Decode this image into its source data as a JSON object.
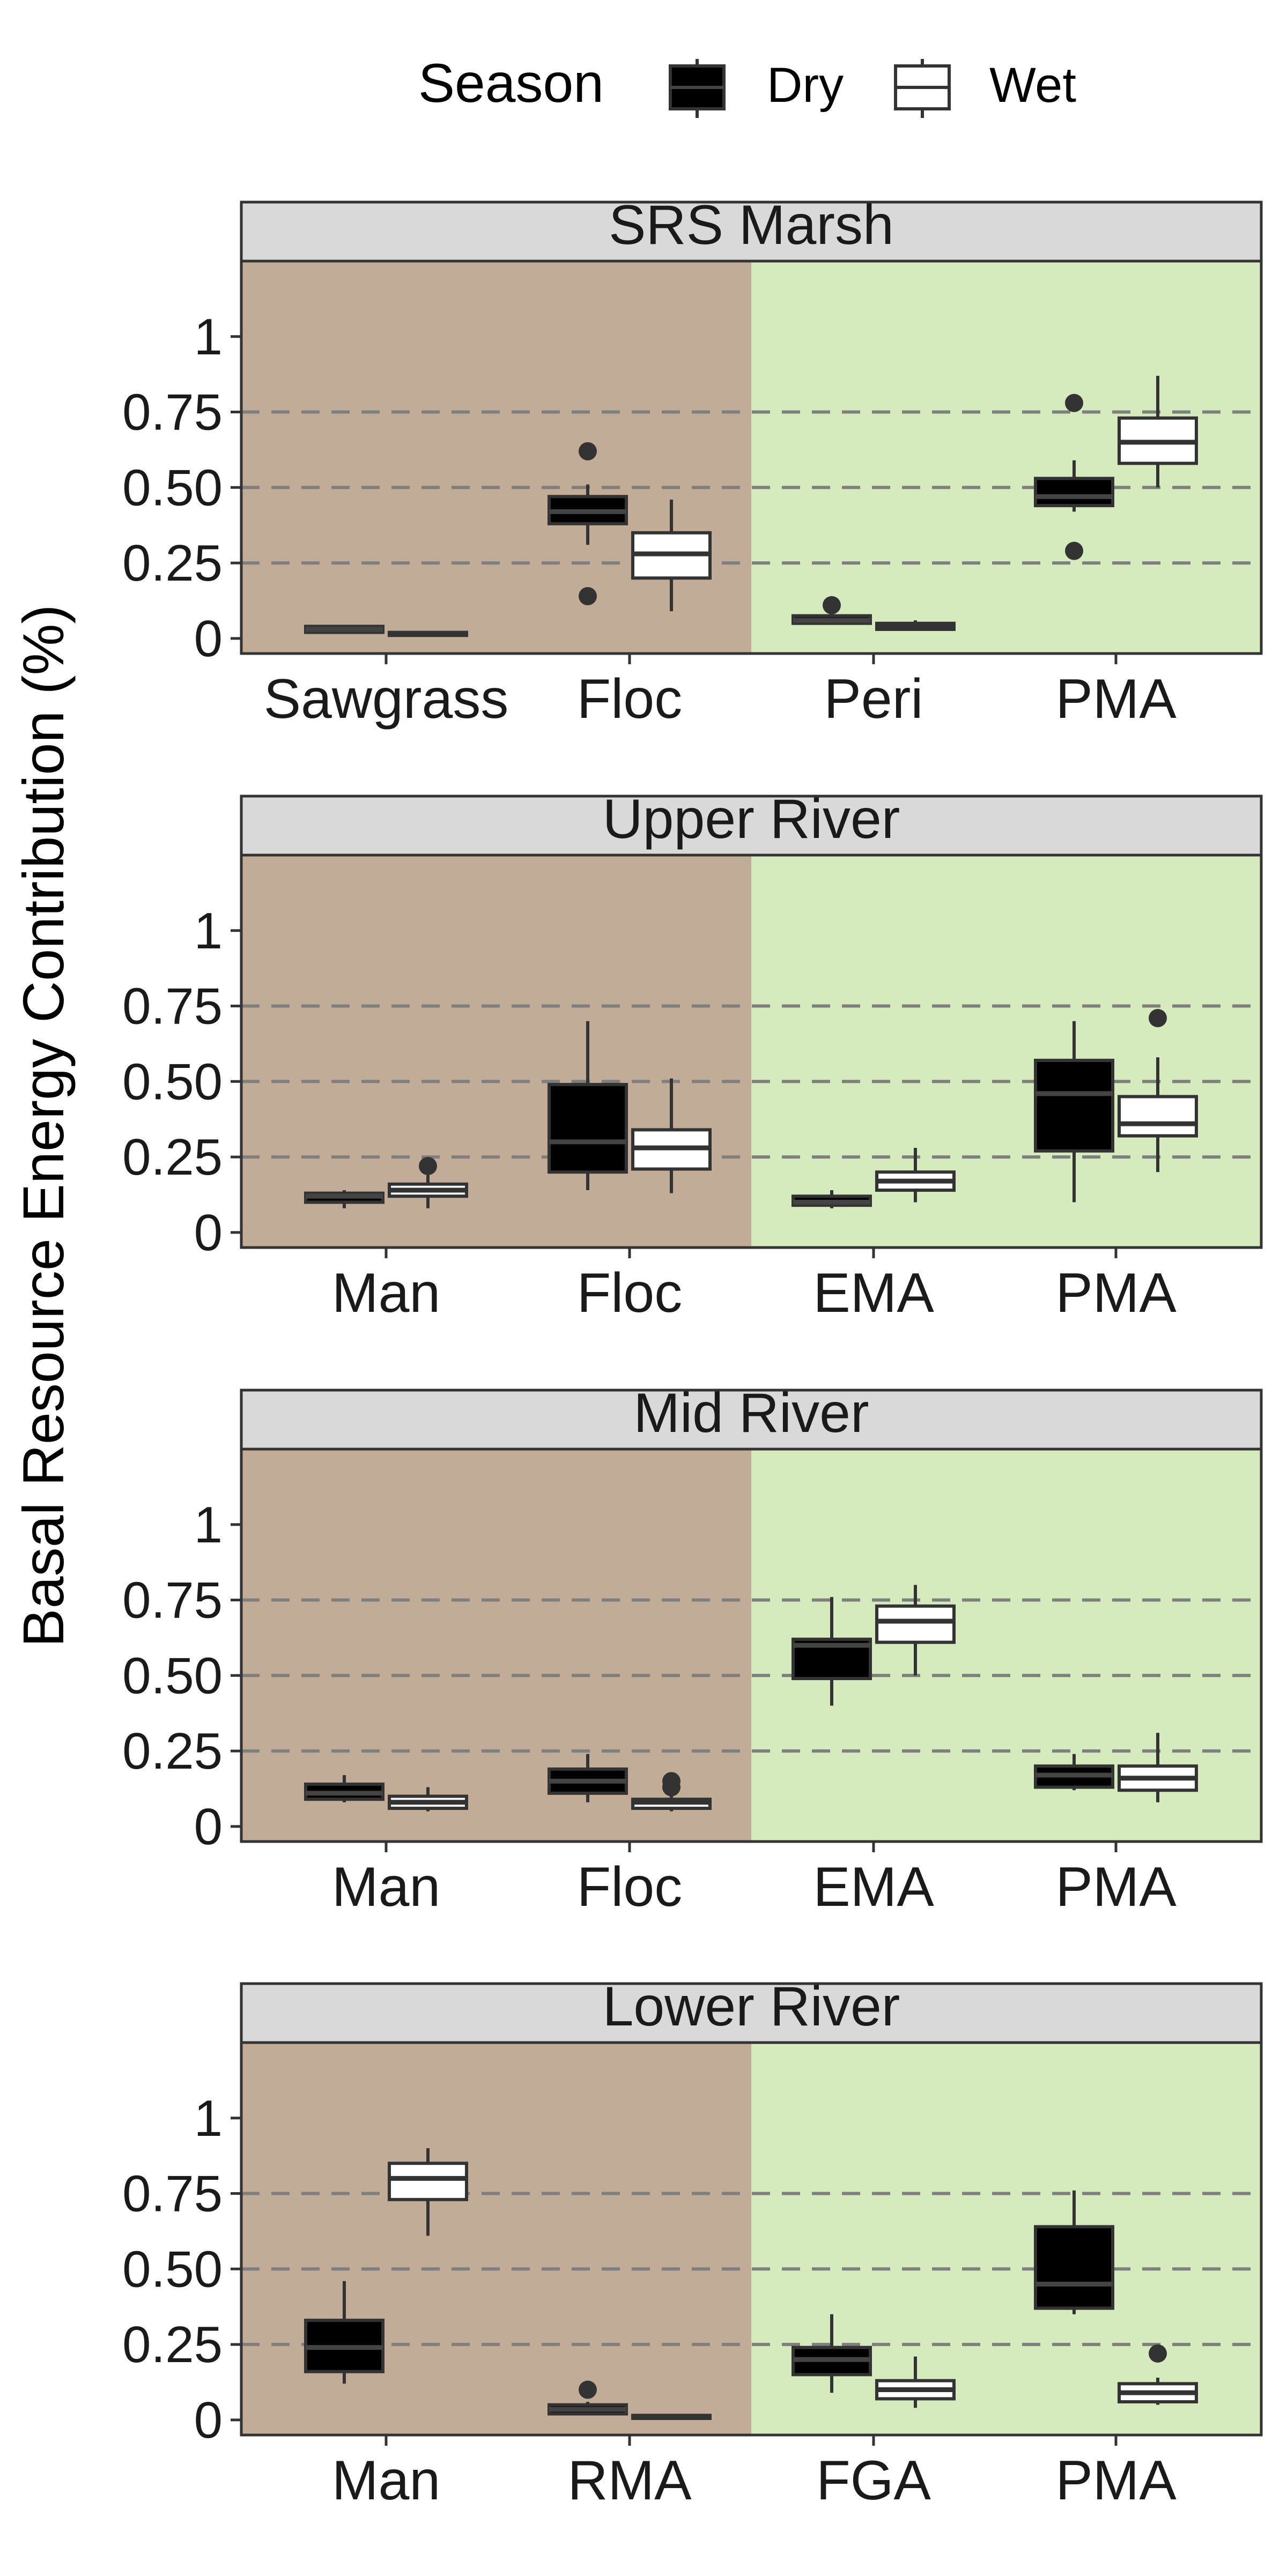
{
  "legend": {
    "title": "Season",
    "entries": [
      {
        "label": "Dry",
        "fill": "#000000"
      },
      {
        "label": "Wet",
        "fill": "#ffffff"
      }
    ]
  },
  "ylabel": "Basal Resource Energy Contribution (%)",
  "colors": {
    "left_background": "#c2ac98",
    "right_background": "#d5ebbd",
    "strip_background": "#d9d9d9",
    "dry_fill": "#000000",
    "wet_fill": "#ffffff",
    "box_line": "#333333",
    "median_dry": "#444444",
    "median_wet": "#333333",
    "gridline": "#7f7f7f"
  },
  "chart_data": {
    "type": "boxplot",
    "ylim": [
      -0.05,
      1.25
    ],
    "yticks": [
      0,
      0.25,
      0.5,
      0.75,
      1
    ],
    "ytick_labels": [
      "0",
      "0.25",
      "0.50",
      "0.75",
      "1"
    ],
    "gridlines": [
      0.25,
      0.5,
      0.75
    ],
    "grid": "dashed horizontal at 0.25, 0.50, 0.75",
    "legend_position": "top",
    "panels": [
      {
        "title": "SRS Marsh",
        "categories": [
          "Sawgrass",
          "Floc",
          "Peri",
          "PMA"
        ],
        "groups": [
          {
            "category": "Sawgrass",
            "season": "Dry",
            "min": 0.02,
            "q1": 0.02,
            "median": 0.03,
            "q3": 0.04,
            "max": 0.04,
            "outliers": []
          },
          {
            "category": "Sawgrass",
            "season": "Wet",
            "min": 0.01,
            "q1": 0.01,
            "median": 0.015,
            "q3": 0.02,
            "max": 0.02,
            "outliers": []
          },
          {
            "category": "Floc",
            "season": "Dry",
            "min": 0.31,
            "q1": 0.38,
            "median": 0.42,
            "q3": 0.47,
            "max": 0.51,
            "outliers": [
              0.62,
              0.14
            ]
          },
          {
            "category": "Floc",
            "season": "Wet",
            "min": 0.09,
            "q1": 0.2,
            "median": 0.28,
            "q3": 0.35,
            "max": 0.46,
            "outliers": []
          },
          {
            "category": "Peri",
            "season": "Dry",
            "min": 0.05,
            "q1": 0.05,
            "median": 0.06,
            "q3": 0.075,
            "max": 0.08,
            "outliers": [
              0.11
            ]
          },
          {
            "category": "Peri",
            "season": "Wet",
            "min": 0.03,
            "q1": 0.03,
            "median": 0.04,
            "q3": 0.05,
            "max": 0.06,
            "outliers": []
          },
          {
            "category": "PMA",
            "season": "Dry",
            "min": 0.42,
            "q1": 0.44,
            "median": 0.47,
            "q3": 0.53,
            "max": 0.59,
            "outliers": [
              0.78,
              0.29
            ]
          },
          {
            "category": "PMA",
            "season": "Wet",
            "min": 0.5,
            "q1": 0.58,
            "median": 0.65,
            "q3": 0.73,
            "max": 0.87,
            "outliers": []
          }
        ]
      },
      {
        "title": "Upper River",
        "categories": [
          "Man",
          "Floc",
          "EMA",
          "PMA"
        ],
        "groups": [
          {
            "category": "Man",
            "season": "Dry",
            "min": 0.08,
            "q1": 0.1,
            "median": 0.12,
            "q3": 0.13,
            "max": 0.14,
            "outliers": []
          },
          {
            "category": "Man",
            "season": "Wet",
            "min": 0.08,
            "q1": 0.12,
            "median": 0.14,
            "q3": 0.16,
            "max": 0.19,
            "outliers": [
              0.22
            ]
          },
          {
            "category": "Floc",
            "season": "Dry",
            "min": 0.14,
            "q1": 0.2,
            "median": 0.3,
            "q3": 0.49,
            "max": 0.7,
            "outliers": []
          },
          {
            "category": "Floc",
            "season": "Wet",
            "min": 0.13,
            "q1": 0.21,
            "median": 0.28,
            "q3": 0.34,
            "max": 0.51,
            "outliers": []
          },
          {
            "category": "EMA",
            "season": "Dry",
            "min": 0.08,
            "q1": 0.09,
            "median": 0.1,
            "q3": 0.12,
            "max": 0.14,
            "outliers": []
          },
          {
            "category": "EMA",
            "season": "Wet",
            "min": 0.1,
            "q1": 0.14,
            "median": 0.17,
            "q3": 0.2,
            "max": 0.28,
            "outliers": []
          },
          {
            "category": "PMA",
            "season": "Dry",
            "min": 0.1,
            "q1": 0.27,
            "median": 0.46,
            "q3": 0.57,
            "max": 0.7,
            "outliers": []
          },
          {
            "category": "PMA",
            "season": "Wet",
            "min": 0.2,
            "q1": 0.32,
            "median": 0.36,
            "q3": 0.45,
            "max": 0.58,
            "outliers": [
              0.71
            ]
          }
        ]
      },
      {
        "title": "Mid River",
        "categories": [
          "Man",
          "Floc",
          "EMA",
          "PMA"
        ],
        "groups": [
          {
            "category": "Man",
            "season": "Dry",
            "min": 0.08,
            "q1": 0.09,
            "median": 0.11,
            "q3": 0.14,
            "max": 0.17,
            "outliers": []
          },
          {
            "category": "Man",
            "season": "Wet",
            "min": 0.05,
            "q1": 0.06,
            "median": 0.08,
            "q3": 0.1,
            "max": 0.13,
            "outliers": []
          },
          {
            "category": "Floc",
            "season": "Dry",
            "min": 0.08,
            "q1": 0.11,
            "median": 0.15,
            "q3": 0.19,
            "max": 0.24,
            "outliers": []
          },
          {
            "category": "Floc",
            "season": "Wet",
            "min": 0.05,
            "q1": 0.06,
            "median": 0.08,
            "q3": 0.09,
            "max": 0.1,
            "outliers": [
              0.15,
              0.13
            ]
          },
          {
            "category": "EMA",
            "season": "Dry",
            "min": 0.4,
            "q1": 0.49,
            "median": 0.6,
            "q3": 0.62,
            "max": 0.76,
            "outliers": []
          },
          {
            "category": "EMA",
            "season": "Wet",
            "min": 0.5,
            "q1": 0.61,
            "median": 0.68,
            "q3": 0.73,
            "max": 0.8,
            "outliers": []
          },
          {
            "category": "PMA",
            "season": "Dry",
            "min": 0.12,
            "q1": 0.13,
            "median": 0.17,
            "q3": 0.2,
            "max": 0.24,
            "outliers": []
          },
          {
            "category": "PMA",
            "season": "Wet",
            "min": 0.08,
            "q1": 0.12,
            "median": 0.16,
            "q3": 0.2,
            "max": 0.31,
            "outliers": []
          }
        ]
      },
      {
        "title": "Lower River",
        "categories": [
          "Man",
          "RMA",
          "FGA",
          "PMA"
        ],
        "groups": [
          {
            "category": "Man",
            "season": "Dry",
            "min": 0.12,
            "q1": 0.16,
            "median": 0.24,
            "q3": 0.33,
            "max": 0.46,
            "outliers": []
          },
          {
            "category": "Man",
            "season": "Wet",
            "min": 0.61,
            "q1": 0.73,
            "median": 0.8,
            "q3": 0.85,
            "max": 0.9,
            "outliers": []
          },
          {
            "category": "RMA",
            "season": "Dry",
            "min": 0.02,
            "q1": 0.02,
            "median": 0.035,
            "q3": 0.05,
            "max": 0.06,
            "outliers": [
              0.1
            ]
          },
          {
            "category": "RMA",
            "season": "Wet",
            "min": 0.005,
            "q1": 0.005,
            "median": 0.01,
            "q3": 0.015,
            "max": 0.02,
            "outliers": []
          },
          {
            "category": "FGA",
            "season": "Dry",
            "min": 0.09,
            "q1": 0.15,
            "median": 0.2,
            "q3": 0.24,
            "max": 0.35,
            "outliers": []
          },
          {
            "category": "FGA",
            "season": "Wet",
            "min": 0.04,
            "q1": 0.07,
            "median": 0.1,
            "q3": 0.13,
            "max": 0.21,
            "outliers": []
          },
          {
            "category": "PMA",
            "season": "Dry",
            "min": 0.35,
            "q1": 0.37,
            "median": 0.45,
            "q3": 0.64,
            "max": 0.76,
            "outliers": []
          },
          {
            "category": "PMA",
            "season": "Wet",
            "min": 0.05,
            "q1": 0.06,
            "median": 0.09,
            "q3": 0.12,
            "max": 0.14,
            "outliers": [
              0.22
            ]
          }
        ]
      }
    ]
  }
}
